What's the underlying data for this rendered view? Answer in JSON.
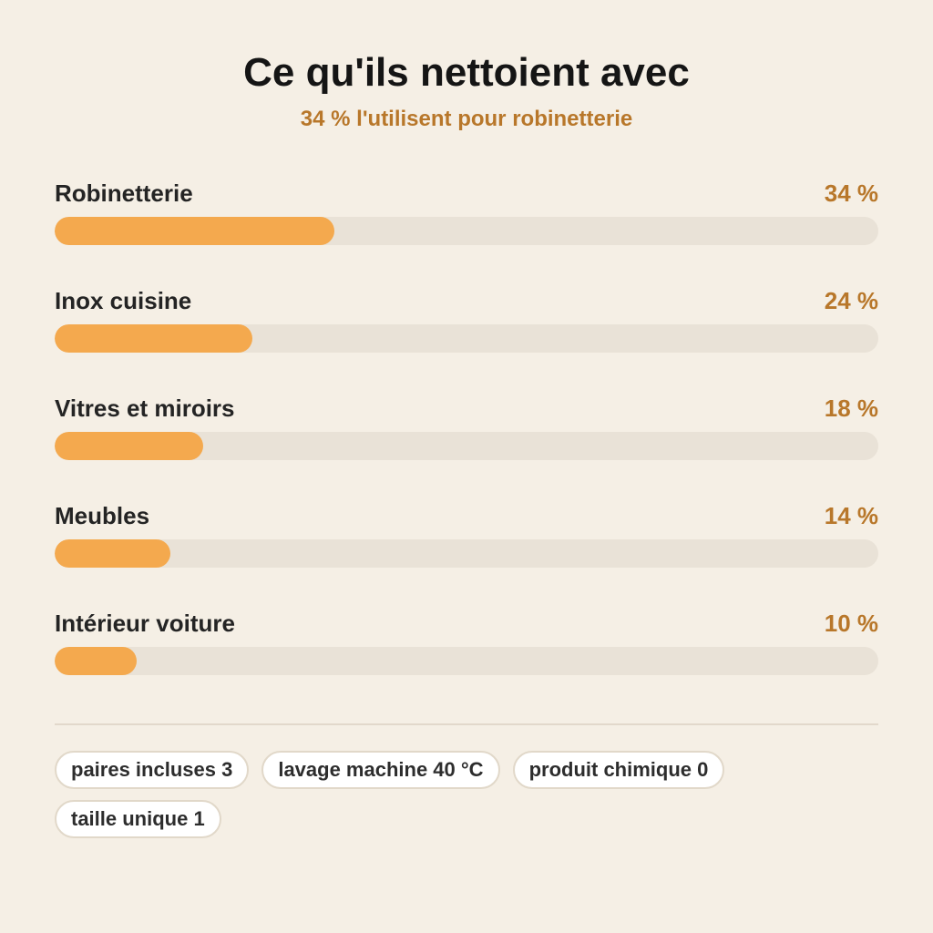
{
  "chart_data": {
    "type": "bar",
    "title": "Ce qu'ils nettoient avec",
    "subtitle": "34 % l'utilisent pour robinetterie",
    "categories": [
      "Robinetterie",
      "Inox cuisine",
      "Vitres et miroirs",
      "Meubles",
      "Intérieur voiture"
    ],
    "values": [
      34,
      24,
      18,
      14,
      10
    ],
    "value_labels": [
      "34 %",
      "24 %",
      "18 %",
      "14 %",
      "10 %"
    ],
    "unit": "%",
    "xlim": [
      0,
      100
    ],
    "orientation": "horizontal",
    "colors": {
      "bar": "#f4a94e",
      "track": "#e9e2d7",
      "value_text": "#b8772a",
      "background": "#f5efe5"
    }
  },
  "chips": [
    "paires incluses 3",
    "lavage machine 40 °C",
    "produit chimique 0",
    "taille unique 1"
  ]
}
